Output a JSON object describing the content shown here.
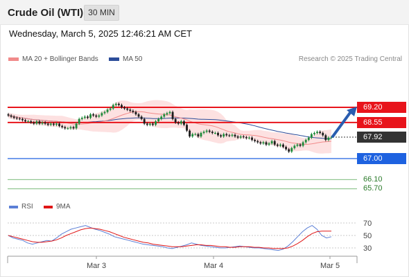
{
  "header": {
    "title": "Crude Oil (WTI)",
    "timeframe": "30 MIN"
  },
  "datetime": "Wednesday, March 5, 2025 12:46:21 AM CET",
  "legend": {
    "ma20_label": "MA 20 + Bollinger Bands",
    "ma50_label": "MA 50",
    "credit": "Research © 2025 Trading Central"
  },
  "colors": {
    "resistance": "#e8141b",
    "support": "#1e62e0",
    "target": "#4da24d",
    "bollinger_band": "#fde1e1",
    "ma20": "#f18a8a",
    "ma50": "#2d4d9a",
    "candle_up": "#1d8a3a",
    "candle_down": "#1c1c1c",
    "current_price": "#333333",
    "rsi_line": "#5b7fd6",
    "rsi_ma": "#e01616",
    "arrow": "#2a5db0"
  },
  "levels": [
    {
      "label": "69.20",
      "type": "resistance"
    },
    {
      "label": "68.55",
      "type": "resistance"
    },
    {
      "label": "67.92",
      "type": "current"
    },
    {
      "label": "67.00",
      "type": "support"
    },
    {
      "label": "66.10",
      "type": "target"
    },
    {
      "label": "65.70",
      "type": "target"
    }
  ],
  "rsi_legend": {
    "rsi_label": "RSI",
    "ma_label": "9MA"
  },
  "rsi_axis": [
    "70",
    "50",
    "30"
  ],
  "x_axis": [
    "Mar 3",
    "Mar 4",
    "Mar 5"
  ],
  "chart_data": {
    "type": "candlestick",
    "y_axis_labels": [
      "69.20",
      "68.55",
      "67.92",
      "67.00",
      "66.10",
      "65.70"
    ],
    "x_axis_labels": [
      "Mar 3",
      "Mar 4",
      "Mar 5"
    ],
    "projected_direction": "up",
    "close_approx": [
      68.85,
      68.8,
      68.75,
      68.72,
      68.7,
      68.65,
      68.6,
      68.6,
      68.55,
      68.5,
      68.6,
      68.5,
      68.55,
      68.5,
      68.45,
      68.5,
      68.45,
      68.5,
      68.4,
      68.35,
      68.3,
      68.3,
      68.35,
      68.3,
      68.5,
      68.7,
      68.75,
      68.8,
      68.75,
      68.9,
      68.85,
      68.8,
      68.85,
      68.95,
      69.0,
      69.1,
      69.15,
      69.3,
      69.35,
      69.3,
      69.2,
      69.15,
      69.1,
      69.05,
      69.0,
      68.9,
      68.8,
      68.7,
      68.5,
      68.45,
      68.5,
      68.45,
      68.6,
      68.7,
      68.8,
      68.9,
      68.95,
      69.0,
      68.7,
      68.55,
      68.5,
      68.6,
      68.45,
      68.2,
      67.95,
      68.05,
      68.05,
      67.95,
      68.1,
      68.15,
      68.2,
      68.15,
      68.1,
      68.1,
      68.0,
      67.95,
      68.05,
      68.0,
      67.98,
      68.02,
      67.95,
      67.9,
      67.95,
      67.92,
      67.88,
      67.9,
      67.8,
      67.75,
      67.7,
      67.65,
      67.7,
      67.6,
      67.65,
      67.75,
      67.6,
      67.55,
      67.6,
      67.5,
      67.4,
      67.3,
      67.45,
      67.55,
      67.6,
      67.55,
      67.7,
      67.8,
      67.9,
      68.05,
      68.1,
      68.15,
      68.1,
      68.0,
      67.8,
      67.9,
      67.92
    ],
    "rsi_approx": [
      50,
      46,
      44,
      42,
      38,
      36,
      38,
      40,
      42,
      41,
      46,
      52,
      56,
      60,
      62,
      64,
      66,
      63,
      60,
      58,
      55,
      52,
      48,
      46,
      44,
      42,
      40,
      38,
      36,
      35,
      34,
      33,
      32,
      30,
      29,
      31,
      33,
      35,
      38,
      36,
      34,
      33,
      32,
      31,
      30,
      30,
      31,
      32,
      33,
      32,
      31,
      30,
      30,
      29,
      28,
      27,
      26,
      28,
      33,
      40,
      48,
      56,
      62,
      66,
      60,
      50,
      46,
      48
    ],
    "rsi_ma_approx": [
      50,
      48,
      46,
      44,
      42,
      40,
      39,
      39,
      40,
      41,
      43,
      46,
      50,
      53,
      56,
      59,
      61,
      62,
      61,
      60,
      58,
      56,
      53,
      50,
      47,
      45,
      43,
      41,
      39,
      38,
      36,
      35,
      34,
      33,
      32,
      32,
      32,
      33,
      34,
      35,
      35,
      34,
      34,
      33,
      32,
      32,
      31,
      31,
      32,
      32,
      32,
      31,
      31,
      30,
      30,
      29,
      29,
      29,
      30,
      33,
      37,
      42,
      48,
      53,
      56,
      57,
      57,
      57
    ],
    "grid": false
  }
}
